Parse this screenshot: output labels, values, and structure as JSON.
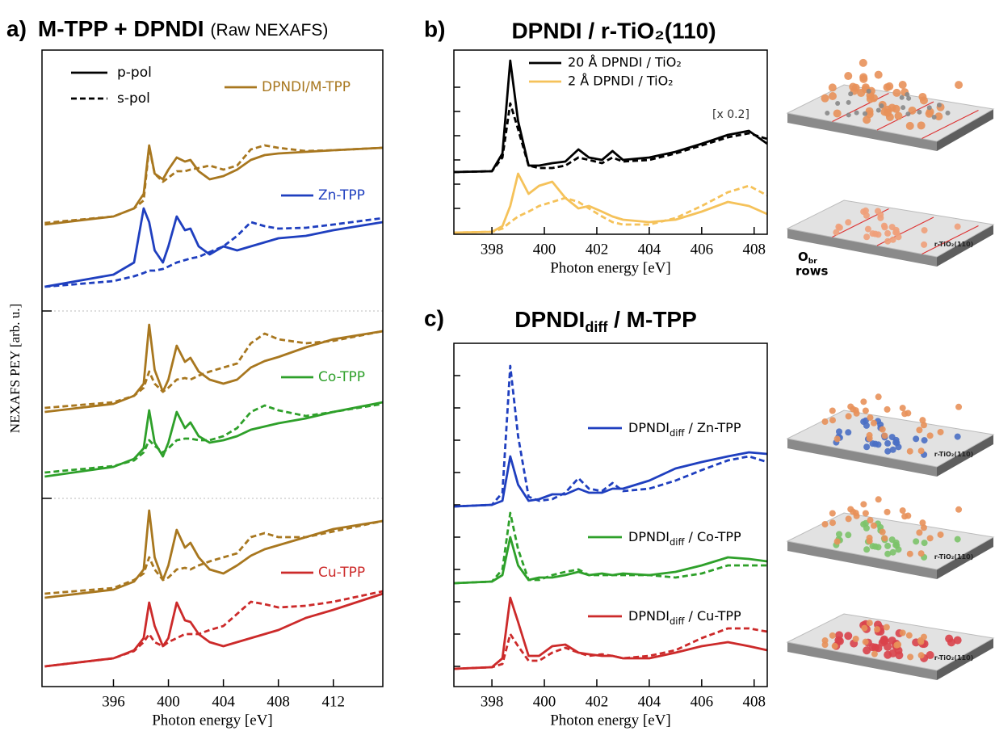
{
  "chart_data": [
    {
      "type": "line",
      "panel": "a)",
      "title": "M-TPP + DPNDI",
      "subtitle": "(Raw NEXAFS)",
      "xlabel": "Photon energy [eV]",
      "ylabel": "NEXAFS PEY [arb. u.]",
      "xlim": [
        390.8,
        415.6
      ],
      "xticks": [
        396,
        400,
        404,
        408,
        412
      ],
      "ylim": [
        0,
        788
      ],
      "legend": [
        {
          "label": "p-pol",
          "dash": false
        },
        {
          "label": "s-pol",
          "dash": true
        }
      ],
      "annotations": [
        {
          "text": "DPNDI/M-TPP",
          "color": "#a8771f"
        },
        {
          "text": "Zn-TPP",
          "color": "#1f3fbf"
        },
        {
          "text": "Co-TPP",
          "color": "#2ea02a"
        },
        {
          "text": "Cu-TPP",
          "color": "#cc2a2a"
        }
      ],
      "x": [
        391,
        396,
        397.5,
        398.2,
        398.6,
        399,
        399.6,
        400,
        400.6,
        401.2,
        401.6,
        402.2,
        403,
        404,
        405,
        406,
        407,
        408,
        410,
        412,
        415.6
      ],
      "series": [
        {
          "color": "#cc2a2a",
          "dash": false,
          "values": [
            25,
            35,
            45,
            60,
            104,
            75,
            50,
            60,
            104,
            82,
            80,
            65,
            55,
            50,
            55,
            60,
            65,
            70,
            85,
            95,
            115
          ]
        },
        {
          "color": "#cc2a2a",
          "dash": true,
          "values": [
            25,
            35,
            44,
            55,
            65,
            55,
            50,
            55,
            60,
            65,
            65,
            65,
            70,
            75,
            90,
            105,
            102,
            98,
            100,
            105,
            118
          ]
        },
        {
          "color": "#a8771f",
          "dash": false,
          "values": [
            110,
            120,
            130,
            145,
            218,
            160,
            132,
            150,
            194,
            172,
            178,
            160,
            145,
            140,
            150,
            162,
            170,
            175,
            185,
            195,
            205
          ]
        },
        {
          "color": "#a8771f",
          "dash": true,
          "values": [
            115,
            122,
            132,
            140,
            160,
            145,
            132,
            135,
            145,
            147,
            145,
            150,
            155,
            160,
            165,
            185,
            190,
            185,
            185,
            192,
            205
          ]
        },
        {
          "color": "#2ea02a",
          "dash": false,
          "values": [
            260,
            272,
            282,
            295,
            342,
            302,
            285,
            302,
            340,
            320,
            327,
            310,
            302,
            305,
            310,
            318,
            322,
            326,
            332,
            340,
            352
          ]
        },
        {
          "color": "#2ea02a",
          "dash": true,
          "values": [
            265,
            273,
            280,
            290,
            305,
            298,
            290,
            295,
            305,
            307,
            307,
            305,
            305,
            310,
            320,
            340,
            348,
            342,
            335,
            340,
            350
          ]
        },
        {
          "color": "#a8771f",
          "dash": false,
          "values": [
            340,
            350,
            360,
            375,
            448,
            392,
            365,
            380,
            422,
            402,
            407,
            390,
            380,
            375,
            380,
            395,
            403,
            408,
            420,
            430,
            440
          ]
        },
        {
          "color": "#a8771f",
          "dash": true,
          "values": [
            345,
            352,
            360,
            370,
            390,
            375,
            365,
            370,
            380,
            382,
            380,
            385,
            390,
            395,
            400,
            425,
            437,
            430,
            425,
            428,
            440
          ]
        },
        {
          "color": "#1f3fbf",
          "dash": false,
          "values": [
            495,
            510,
            525,
            592,
            575,
            540,
            525,
            545,
            582,
            565,
            567,
            545,
            535,
            545,
            540,
            545,
            550,
            555,
            558,
            565,
            575
          ]
        },
        {
          "color": "#1f3fbf",
          "dash": true,
          "values": [
            495,
            502,
            508,
            512,
            515,
            515,
            517,
            520,
            525,
            528,
            530,
            532,
            538,
            545,
            558,
            575,
            570,
            567,
            568,
            572,
            580
          ]
        },
        {
          "color": "#a8771f",
          "dash": false,
          "values": [
            572,
            582,
            592,
            610,
            670,
            635,
            628,
            640,
            655,
            650,
            652,
            638,
            628,
            632,
            640,
            652,
            658,
            660,
            662,
            664,
            667
          ]
        },
        {
          "color": "#a8771f",
          "dash": true,
          "values": [
            574,
            582,
            592,
            602,
            668,
            635,
            625,
            630,
            638,
            638,
            640,
            642,
            645,
            640,
            645,
            665,
            670,
            667,
            663,
            664,
            667
          ]
        }
      ]
    },
    {
      "type": "line",
      "panel": "b)",
      "title": "DPNDI / r-TiO₂(110)",
      "annotation": "[x 0.2]",
      "xlabel": "Photon energy [eV]",
      "xlim": [
        396.55,
        408.5
      ],
      "xticks": [
        398,
        400,
        402,
        404,
        406,
        408
      ],
      "ylim": [
        0,
        228
      ],
      "x": [
        396.55,
        398,
        398.4,
        398.7,
        399,
        399.4,
        399.8,
        400.3,
        400.8,
        401.3,
        401.7,
        402.2,
        402.6,
        403,
        404,
        405,
        406,
        407,
        407.8,
        408.5
      ],
      "series": [
        {
          "name": "20 Å DPNDI / TiO₂",
          "color": "#000000",
          "dash": false,
          "values": [
            77,
            78,
            100,
            215,
            140,
            85,
            85,
            88,
            90,
            105,
            95,
            92,
            103,
            92,
            95,
            102,
            112,
            123,
            128,
            112
          ]
        },
        {
          "color": "#000000",
          "dash": true,
          "values": [
            77,
            78,
            95,
            162,
            130,
            85,
            82,
            82,
            85,
            95,
            92,
            88,
            95,
            90,
            92,
            100,
            110,
            120,
            125,
            118
          ]
        },
        {
          "name": "2 Å DPNDI / TiO₂",
          "color": "#f5c25a",
          "dash": false,
          "values": [
            2,
            3,
            10,
            35,
            75,
            50,
            60,
            65,
            45,
            32,
            35,
            28,
            22,
            18,
            15,
            18,
            28,
            40,
            35,
            25
          ]
        },
        {
          "color": "#f5c25a",
          "dash": true,
          "values": [
            2,
            3,
            7,
            15,
            22,
            28,
            35,
            40,
            45,
            40,
            32,
            22,
            15,
            12,
            12,
            20,
            35,
            52,
            60,
            48
          ]
        }
      ]
    },
    {
      "type": "line",
      "panel": "c)",
      "title": [
        "DPNDI",
        "diff",
        " / M-TPP"
      ],
      "xlabel": "Photon energy [eV]",
      "xlim": [
        396.55,
        408.5
      ],
      "xticks": [
        398,
        400,
        402,
        404,
        406,
        408
      ],
      "ylim": [
        0,
        425
      ],
      "x": [
        396.55,
        398,
        398.4,
        398.7,
        399,
        399.4,
        399.8,
        400.3,
        400.8,
        401.3,
        401.7,
        402.2,
        402.6,
        403,
        404,
        405,
        406,
        407,
        407.8,
        408.5
      ],
      "series": [
        {
          "name": [
            "DPNDI",
            "diff",
            " / Zn-TPP"
          ],
          "color": "#1f3fbf",
          "dash": false,
          "values": [
            223,
            225,
            230,
            285,
            250,
            230,
            232,
            238,
            238,
            245,
            240,
            240,
            245,
            245,
            255,
            270,
            278,
            285,
            290,
            288
          ]
        },
        {
          "color": "#1f3fbf",
          "dash": true,
          "values": [
            223,
            225,
            240,
            397,
            310,
            235,
            230,
            232,
            240,
            258,
            245,
            242,
            252,
            242,
            245,
            255,
            268,
            280,
            285,
            278
          ]
        },
        {
          "name": [
            "DPNDI",
            "diff",
            " / Co-TPP"
          ],
          "color": "#2ea02a",
          "dash": false,
          "values": [
            128,
            130,
            138,
            185,
            150,
            132,
            135,
            135,
            138,
            142,
            138,
            140,
            138,
            140,
            138,
            142,
            150,
            160,
            158,
            155
          ]
        },
        {
          "color": "#2ea02a",
          "dash": true,
          "values": [
            128,
            130,
            145,
            215,
            170,
            132,
            132,
            138,
            142,
            145,
            138,
            138,
            138,
            138,
            138,
            135,
            140,
            150,
            150,
            150
          ]
        },
        {
          "name": [
            "DPNDI",
            "diff",
            " / Cu-TPP"
          ],
          "color": "#cc2a2a",
          "dash": false,
          "values": [
            22,
            24,
            35,
            110,
            80,
            38,
            38,
            50,
            52,
            42,
            40,
            38,
            38,
            35,
            35,
            42,
            50,
            55,
            50,
            45
          ]
        },
        {
          "color": "#cc2a2a",
          "dash": true,
          "values": [
            22,
            24,
            28,
            65,
            50,
            32,
            32,
            42,
            48,
            42,
            38,
            40,
            38,
            35,
            38,
            45,
            60,
            72,
            72,
            68
          ]
        }
      ]
    }
  ],
  "illustrations": {
    "substrate": "r-TiO₂(110)",
    "rows": [
      "O",
      "br",
      "rows"
    ]
  }
}
